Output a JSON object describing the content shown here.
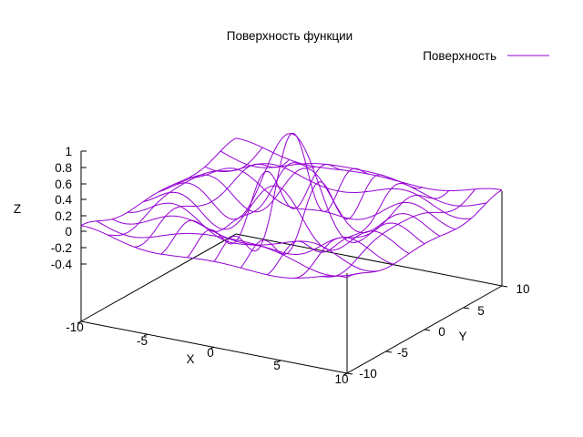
{
  "chart_data": {
    "type": "surface",
    "title": "Поверхность функции",
    "xlabel": "X",
    "ylabel": "Y",
    "zlabel": "Z",
    "xlim": [
      -10,
      10
    ],
    "ylim": [
      -10,
      10
    ],
    "zlim": [
      -0.4,
      1
    ],
    "x_ticks": [
      "-10",
      "-5",
      "0",
      "5",
      "10"
    ],
    "y_ticks": [
      "-10",
      "-5",
      "0",
      "5",
      "10"
    ],
    "z_ticks": [
      "1",
      "0.8",
      "0.6",
      "0.4",
      "0.2",
      "0",
      "-0.2",
      "-0.4"
    ],
    "x_grid": [
      -10,
      -8,
      -6,
      -4,
      -2,
      0,
      2,
      4,
      6,
      8,
      10
    ],
    "y_grid": [
      -10,
      -8,
      -6,
      -4,
      -2,
      0,
      2,
      4,
      6,
      8,
      10
    ],
    "legend_position": "top-right",
    "series": [
      {
        "name": "Поверхность",
        "color": "#9400d3"
      }
    ]
  }
}
